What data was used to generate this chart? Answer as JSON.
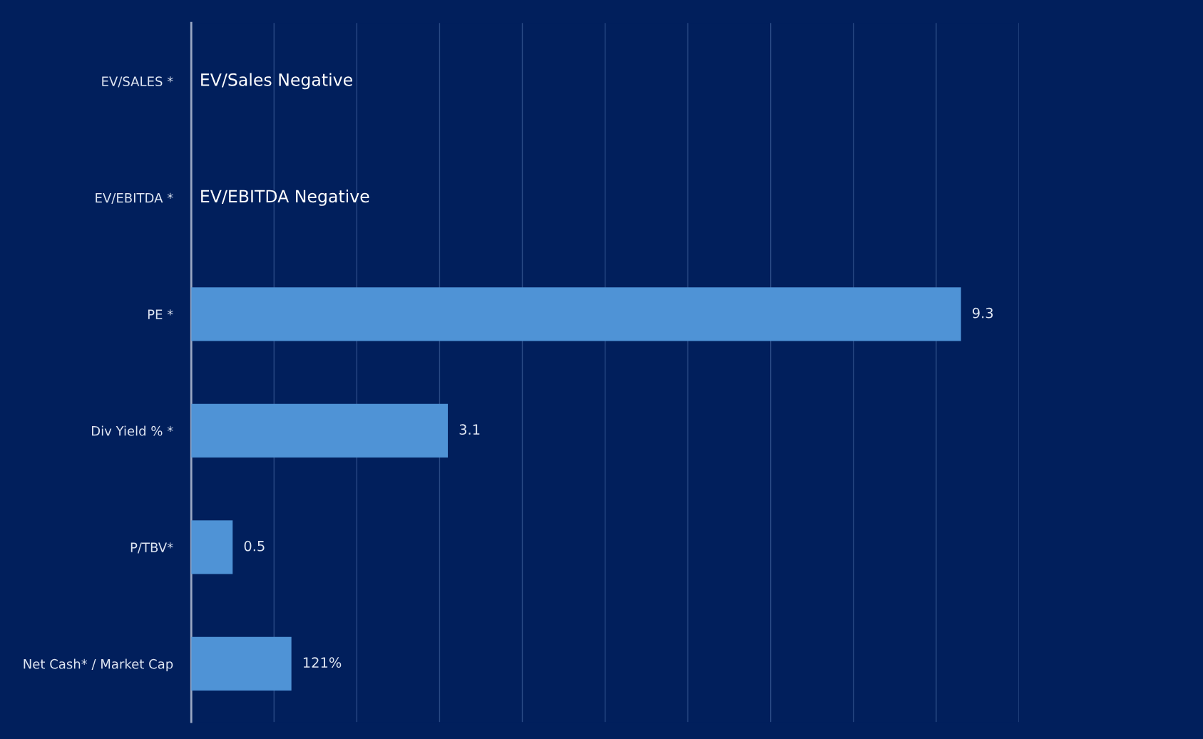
{
  "chart_data": {
    "type": "bar",
    "orientation": "horizontal",
    "categories": [
      "EV/SALES *",
      "EV/EBITDA *",
      "PE *",
      "Div Yield % *",
      "P/TBV*",
      "Net Cash* / Market Cap"
    ],
    "values": [
      null,
      null,
      9.3,
      3.1,
      0.5,
      1.21
    ],
    "value_labels": [
      null,
      null,
      "9.3",
      "3.1",
      "0.5",
      "121%"
    ],
    "color": "#4f93d6",
    "xlim": [
      0,
      10
    ],
    "xticks": [
      {
        "value": 0,
        "label": null
      },
      {
        "value": 1,
        "label": null
      },
      {
        "value": 2,
        "label": null
      },
      {
        "value": 3,
        "label": null
      },
      {
        "value": 4,
        "label": null
      },
      {
        "value": 5,
        "label": null
      },
      {
        "value": 6,
        "label": null
      },
      {
        "value": 7,
        "label": null
      },
      {
        "value": 8,
        "label": null
      },
      {
        "value": 9,
        "label": null
      },
      {
        "value": 10,
        "label": null
      }
    ],
    "grid": "x",
    "tick_labels": "y",
    "annotations": [
      "EV/Sales Negative",
      "EV/EBITDA Negative"
    ]
  }
}
